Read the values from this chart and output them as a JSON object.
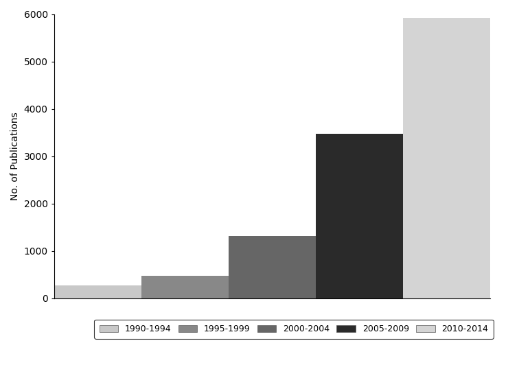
{
  "categories": [
    "1990-1994",
    "1995-1999",
    "2000-2004",
    "2005-2009",
    "2010-2014"
  ],
  "values": [
    280,
    480,
    1320,
    3480,
    5920
  ],
  "bar_colors": [
    "#c8c8c8",
    "#888888",
    "#666666",
    "#2a2a2a",
    "#d4d4d4"
  ],
  "ylabel": "No. of Publications",
  "ylim": [
    0,
    6000
  ],
  "yticks": [
    0,
    1000,
    2000,
    3000,
    4000,
    5000,
    6000
  ],
  "background_color": "#ffffff"
}
